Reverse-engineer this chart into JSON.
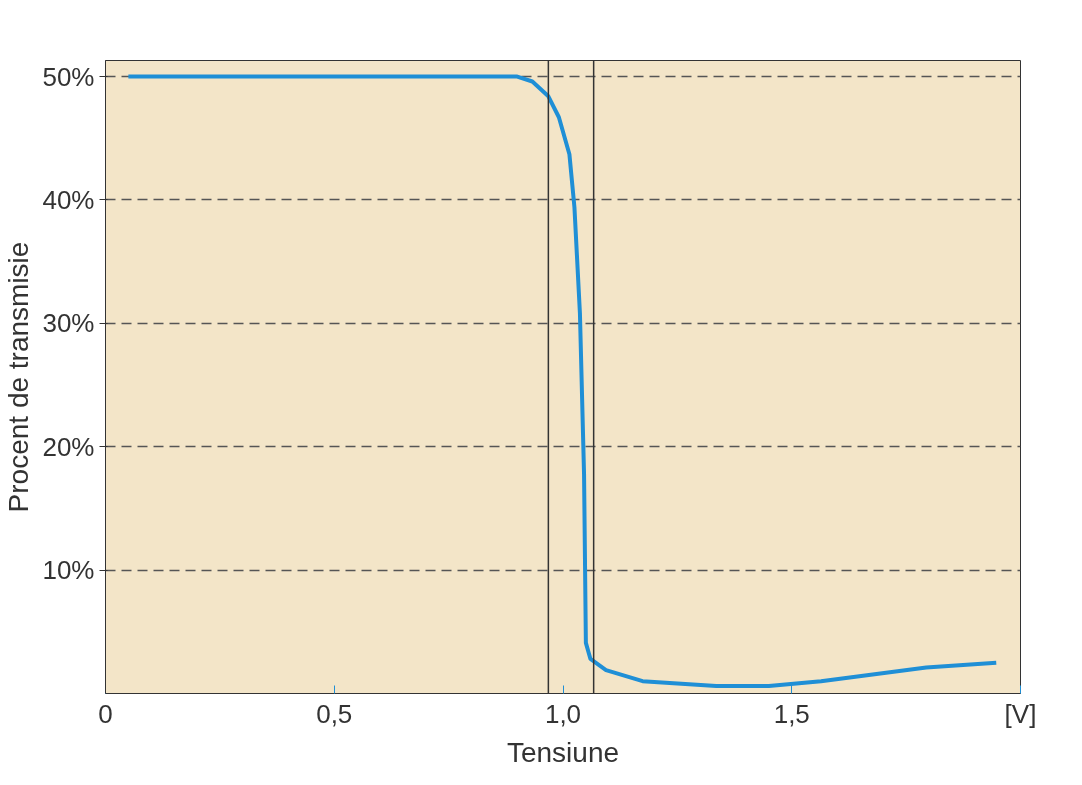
{
  "chart_data": {
    "type": "line",
    "xlabel": "Tensiune",
    "ylabel": "Procent de transmisie",
    "x": [
      0.05,
      0.9,
      0.933,
      0.968,
      0.991,
      1.014,
      1.025,
      1.037,
      1.046,
      1.05,
      1.06,
      1.094,
      1.174,
      1.335,
      1.45,
      1.564,
      1.794,
      1.947
    ],
    "series": [
      {
        "color": "#1f8fd6",
        "values": [
          50,
          50,
          49.6,
          48.4,
          46.7,
          43.7,
          39.4,
          30.8,
          17.8,
          4.1,
          2.8,
          1.9,
          1.0,
          0.6,
          0.6,
          1.0,
          2.1,
          2.5
        ]
      }
    ],
    "xlim": [
      0,
      2
    ],
    "xticks": [
      0,
      {
        "value": 0.5,
        "label": "0,5"
      },
      {
        "value": 1.0,
        "label": "1,0"
      },
      {
        "value": 1.5,
        "label": "1,5"
      },
      {
        "value": 2,
        "label": "[V]"
      }
    ],
    "ylim": [
      0,
      51.3
    ],
    "yticks": [
      {
        "value": 10,
        "label": "10%"
      },
      {
        "value": 20,
        "label": "20%"
      },
      {
        "value": 30,
        "label": "30%"
      },
      {
        "value": 40,
        "label": "40%"
      },
      {
        "value": 50,
        "label": "50%"
      }
    ],
    "ref_lines": [
      {
        "axis": "x",
        "value": 0.968,
        "color": "#333333"
      },
      {
        "axis": "x",
        "value": 1.067,
        "color": "#333333"
      }
    ],
    "grid": "y",
    "marker": "none",
    "line_style": "solid"
  }
}
